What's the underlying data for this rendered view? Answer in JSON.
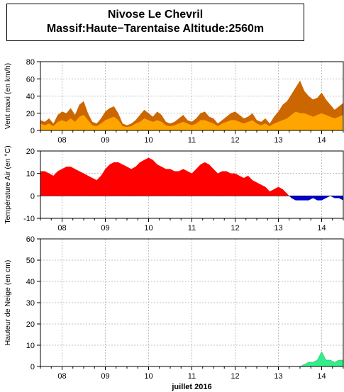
{
  "header": {
    "title_line1": "Nivose Le Chevril",
    "title_line2": "Massif:Haute−Tarentaise Altitude:2560m"
  },
  "xaxis": {
    "day_labels": [
      "08",
      "09",
      "10",
      "11",
      "12",
      "13",
      "14"
    ],
    "label": "juillet 2016"
  },
  "chart_data": [
    {
      "type": "area",
      "ylabel": "Vent maxi (en km/h)",
      "ylim": [
        0,
        80
      ],
      "yticks": [
        0,
        20,
        40,
        60,
        80
      ],
      "grid": true,
      "colors": {
        "gust": "#CC6600",
        "mean": "#FFA500"
      },
      "x": [
        7.5,
        7.6,
        7.7,
        7.8,
        7.9,
        8.0,
        8.1,
        8.2,
        8.3,
        8.4,
        8.5,
        8.6,
        8.7,
        8.8,
        8.9,
        9.0,
        9.1,
        9.2,
        9.3,
        9.4,
        9.5,
        9.6,
        9.7,
        9.8,
        9.9,
        10.0,
        10.1,
        10.2,
        10.3,
        10.4,
        10.5,
        10.6,
        10.7,
        10.8,
        10.9,
        11.0,
        11.1,
        11.2,
        11.3,
        11.4,
        11.5,
        11.6,
        11.7,
        11.8,
        11.9,
        12.0,
        12.1,
        12.2,
        12.3,
        12.4,
        12.5,
        12.6,
        12.7,
        12.8,
        12.9,
        13.0,
        13.1,
        13.2,
        13.3,
        13.4,
        13.5,
        13.6,
        13.7,
        13.8,
        13.9,
        14.0,
        14.1,
        14.2,
        14.3,
        14.4,
        14.5
      ],
      "series": [
        {
          "values": [
            12,
            10,
            14,
            8,
            18,
            22,
            20,
            26,
            18,
            30,
            34,
            20,
            10,
            8,
            14,
            22,
            26,
            28,
            20,
            8,
            6,
            8,
            12,
            18,
            24,
            20,
            16,
            22,
            18,
            10,
            8,
            10,
            14,
            18,
            12,
            10,
            14,
            20,
            22,
            16,
            14,
            8,
            12,
            16,
            20,
            22,
            18,
            14,
            16,
            20,
            12,
            10,
            14,
            8,
            16,
            22,
            30,
            34,
            42,
            50,
            58,
            46,
            40,
            36,
            38,
            44,
            36,
            30,
            24,
            28,
            32
          ]
        },
        {
          "values": [
            8,
            6,
            8,
            5,
            10,
            12,
            10,
            14,
            10,
            16,
            18,
            12,
            6,
            5,
            8,
            12,
            14,
            16,
            12,
            5,
            4,
            5,
            8,
            10,
            14,
            12,
            10,
            12,
            10,
            6,
            5,
            6,
            8,
            10,
            8,
            6,
            8,
            12,
            12,
            10,
            8,
            5,
            8,
            10,
            12,
            12,
            10,
            8,
            10,
            12,
            8,
            6,
            8,
            5,
            8,
            10,
            12,
            14,
            18,
            22,
            20,
            20,
            18,
            16,
            18,
            20,
            18,
            16,
            14,
            16,
            18
          ]
        }
      ]
    },
    {
      "type": "area",
      "ylabel": "Température Air (en °C)",
      "ylim": [
        -10,
        20
      ],
      "yticks": [
        -10,
        0,
        10,
        20
      ],
      "grid": true,
      "colors": {
        "positive": "#FF0000",
        "negative": "#0000CC"
      },
      "x": [
        7.5,
        7.6,
        7.7,
        7.8,
        7.9,
        8.0,
        8.1,
        8.2,
        8.3,
        8.4,
        8.5,
        8.6,
        8.7,
        8.8,
        8.9,
        9.0,
        9.1,
        9.2,
        9.3,
        9.4,
        9.5,
        9.6,
        9.7,
        9.8,
        9.9,
        10.0,
        10.1,
        10.2,
        10.3,
        10.4,
        10.5,
        10.6,
        10.7,
        10.8,
        10.9,
        11.0,
        11.1,
        11.2,
        11.3,
        11.4,
        11.5,
        11.6,
        11.7,
        11.8,
        11.9,
        12.0,
        12.1,
        12.2,
        12.3,
        12.4,
        12.5,
        12.6,
        12.7,
        12.8,
        12.9,
        13.0,
        13.1,
        13.2,
        13.3,
        13.4,
        13.5,
        13.6,
        13.7,
        13.8,
        13.9,
        14.0,
        14.1,
        14.2,
        14.3,
        14.4,
        14.5
      ],
      "series": [
        {
          "values": [
            11,
            11,
            10,
            9,
            11,
            12,
            13,
            13,
            12,
            11,
            10,
            9,
            8,
            7,
            9,
            12,
            14,
            15,
            15,
            14,
            13,
            12,
            13,
            15,
            16,
            17,
            16,
            14,
            13,
            12,
            12,
            11,
            11,
            12,
            11,
            10,
            12,
            14,
            15,
            14,
            12,
            10,
            11,
            11,
            10,
            10,
            9,
            8,
            9,
            7,
            6,
            5,
            4,
            2,
            3,
            4,
            3,
            1,
            -1,
            -2,
            -2,
            -2,
            -2,
            -1,
            -2,
            -2,
            -1,
            0,
            -1,
            -1,
            -2
          ]
        }
      ]
    },
    {
      "type": "area",
      "ylabel": "Hauteur de Neige (en cm)",
      "ylim": [
        0,
        60
      ],
      "yticks": [
        0,
        10,
        20,
        30,
        40,
        50,
        60
      ],
      "grid": true,
      "colors": {
        "fill": "#33EE88"
      },
      "x": [
        7.5,
        8.0,
        8.5,
        9.0,
        9.5,
        10.0,
        10.5,
        11.0,
        11.5,
        12.0,
        12.5,
        13.0,
        13.4,
        13.5,
        13.6,
        13.7,
        13.8,
        13.9,
        14.0,
        14.1,
        14.2,
        14.3,
        14.4,
        14.5
      ],
      "series": [
        {
          "values": [
            0,
            0,
            0,
            0,
            0,
            0,
            0,
            0,
            0,
            0,
            0,
            0,
            0,
            0,
            1,
            2,
            2,
            3,
            7,
            3,
            3,
            2,
            3,
            3
          ]
        }
      ]
    }
  ]
}
